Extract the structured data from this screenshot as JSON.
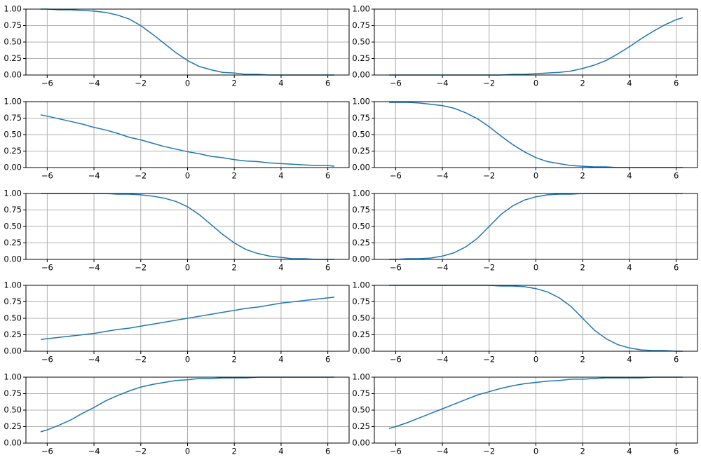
{
  "chart_data": [
    {
      "type": "line",
      "color": "#1f77b4",
      "grid": true,
      "xlim": [
        -6.91,
        6.91
      ],
      "ylim": [
        0,
        1
      ],
      "xticks": [
        {
          "value": -6,
          "label": "−6"
        },
        {
          "value": -4,
          "label": "−4"
        },
        {
          "value": -2,
          "label": "−2"
        },
        0,
        2,
        4,
        6
      ],
      "yticks": [
        {
          "value": 0,
          "label": "0.00"
        },
        {
          "value": 0.25,
          "label": "0.25"
        },
        {
          "value": 0.5,
          "label": "0.50"
        },
        {
          "value": 0.75,
          "label": "0.75"
        },
        {
          "value": 1,
          "label": "1.00"
        }
      ],
      "x": [
        -6.28,
        -6,
        -5.5,
        -5,
        -4.5,
        -4,
        -3.5,
        -3,
        -2.5,
        -2,
        -1.5,
        -1,
        -0.5,
        0,
        0.5,
        1,
        1.5,
        2,
        2.5,
        3,
        3.5,
        4,
        4.5,
        5,
        5.5,
        6,
        6.28
      ],
      "values": [
        1.0,
        1.0,
        0.99,
        0.99,
        0.98,
        0.97,
        0.95,
        0.91,
        0.85,
        0.75,
        0.62,
        0.48,
        0.34,
        0.22,
        0.13,
        0.08,
        0.04,
        0.03,
        0.01,
        0.01,
        0,
        0,
        0,
        0,
        0,
        0,
        0
      ]
    },
    {
      "type": "line",
      "color": "#1f77b4",
      "grid": true,
      "xlim": [
        -6.91,
        6.91
      ],
      "ylim": [
        0,
        1
      ],
      "xticks": [
        {
          "value": -6,
          "label": "−6"
        },
        {
          "value": -4,
          "label": "−4"
        },
        {
          "value": -2,
          "label": "−2"
        },
        0,
        2,
        4,
        6
      ],
      "yticks": [
        {
          "value": 0,
          "label": "0.00"
        },
        {
          "value": 0.25,
          "label": "0.25"
        },
        {
          "value": 0.5,
          "label": "0.50"
        },
        {
          "value": 0.75,
          "label": "0.75"
        },
        {
          "value": 1,
          "label": "1.00"
        }
      ],
      "x": [
        -6.28,
        -6,
        -5.5,
        -5,
        -4.5,
        -4,
        -3.5,
        -3,
        -2.5,
        -2,
        -1.5,
        -1,
        -0.5,
        0,
        0.5,
        1,
        1.5,
        2,
        2.5,
        3,
        3.5,
        4,
        4.5,
        5,
        5.5,
        6,
        6.28
      ],
      "values": [
        0,
        0,
        0,
        0,
        0,
        0,
        0,
        0,
        0,
        0,
        0,
        0.01,
        0.01,
        0.02,
        0.03,
        0.04,
        0.06,
        0.1,
        0.15,
        0.22,
        0.32,
        0.43,
        0.55,
        0.66,
        0.76,
        0.84,
        0.87
      ]
    },
    {
      "type": "line",
      "color": "#1f77b4",
      "grid": true,
      "xlim": [
        -6.91,
        6.91
      ],
      "ylim": [
        0,
        1
      ],
      "xticks": [
        {
          "value": -6,
          "label": "−6"
        },
        {
          "value": -4,
          "label": "−4"
        },
        {
          "value": -2,
          "label": "−2"
        },
        0,
        2,
        4,
        6
      ],
      "yticks": [
        {
          "value": 0,
          "label": "0.00"
        },
        {
          "value": 0.25,
          "label": "0.25"
        },
        {
          "value": 0.5,
          "label": "0.50"
        },
        {
          "value": 0.75,
          "label": "0.75"
        },
        {
          "value": 1,
          "label": "1.00"
        }
      ],
      "x": [
        -6.28,
        -6,
        -5.5,
        -5,
        -4.5,
        -4,
        -3.5,
        -3,
        -2.5,
        -2,
        -1.5,
        -1,
        -0.5,
        0,
        0.5,
        1,
        1.5,
        2,
        2.5,
        3,
        3.5,
        4,
        4.5,
        5,
        5.5,
        6,
        6.28
      ],
      "values": [
        0.8,
        0.78,
        0.74,
        0.7,
        0.66,
        0.61,
        0.57,
        0.52,
        0.46,
        0.42,
        0.37,
        0.32,
        0.28,
        0.24,
        0.21,
        0.17,
        0.15,
        0.12,
        0.1,
        0.09,
        0.07,
        0.06,
        0.05,
        0.04,
        0.03,
        0.03,
        0.02
      ]
    },
    {
      "type": "line",
      "color": "#1f77b4",
      "grid": true,
      "xlim": [
        -6.91,
        6.91
      ],
      "ylim": [
        0,
        1
      ],
      "xticks": [
        {
          "value": -6,
          "label": "−6"
        },
        {
          "value": -4,
          "label": "−4"
        },
        {
          "value": -2,
          "label": "−2"
        },
        0,
        2,
        4,
        6
      ],
      "yticks": [
        {
          "value": 0,
          "label": "0.00"
        },
        {
          "value": 0.25,
          "label": "0.25"
        },
        {
          "value": 0.5,
          "label": "0.50"
        },
        {
          "value": 0.75,
          "label": "0.75"
        },
        {
          "value": 1,
          "label": "1.00"
        }
      ],
      "x": [
        -6.28,
        -6,
        -5.5,
        -5,
        -4.5,
        -4,
        -3.5,
        -3,
        -2.5,
        -2,
        -1.5,
        -1,
        -0.5,
        0,
        0.5,
        1,
        1.5,
        2,
        2.5,
        3,
        3.5,
        4,
        4.5,
        5,
        5.5,
        6,
        6.28
      ],
      "values": [
        0.99,
        0.99,
        0.99,
        0.98,
        0.96,
        0.94,
        0.9,
        0.83,
        0.74,
        0.62,
        0.48,
        0.35,
        0.24,
        0.15,
        0.09,
        0.06,
        0.03,
        0.02,
        0.01,
        0.01,
        0,
        0,
        0,
        0,
        0,
        0,
        0
      ]
    },
    {
      "type": "line",
      "color": "#1f77b4",
      "grid": true,
      "xlim": [
        -6.91,
        6.91
      ],
      "ylim": [
        0,
        1
      ],
      "xticks": [
        {
          "value": -6,
          "label": "−6"
        },
        {
          "value": -4,
          "label": "−4"
        },
        {
          "value": -2,
          "label": "−2"
        },
        0,
        2,
        4,
        6
      ],
      "yticks": [
        {
          "value": 0,
          "label": "0.00"
        },
        {
          "value": 0.25,
          "label": "0.25"
        },
        {
          "value": 0.5,
          "label": "0.50"
        },
        {
          "value": 0.75,
          "label": "0.75"
        },
        {
          "value": 1,
          "label": "1.00"
        }
      ],
      "x": [
        -6.28,
        -6,
        -5.5,
        -5,
        -4.5,
        -4,
        -3.5,
        -3,
        -2.5,
        -2,
        -1.5,
        -1,
        -0.5,
        0,
        0.5,
        1,
        1.5,
        2,
        2.5,
        3,
        3.5,
        4,
        4.5,
        5,
        5.5,
        6,
        6.28
      ],
      "values": [
        1.0,
        1.0,
        1.0,
        1.0,
        1.0,
        1.0,
        1.0,
        0.99,
        0.99,
        0.98,
        0.96,
        0.93,
        0.88,
        0.8,
        0.68,
        0.53,
        0.38,
        0.25,
        0.15,
        0.09,
        0.05,
        0.03,
        0.01,
        0.01,
        0,
        0,
        0
      ]
    },
    {
      "type": "line",
      "color": "#1f77b4",
      "grid": true,
      "xlim": [
        -6.91,
        6.91
      ],
      "ylim": [
        0,
        1
      ],
      "xticks": [
        {
          "value": -6,
          "label": "−6"
        },
        {
          "value": -4,
          "label": "−4"
        },
        {
          "value": -2,
          "label": "−2"
        },
        0,
        2,
        4,
        6
      ],
      "yticks": [
        {
          "value": 0,
          "label": "0.00"
        },
        {
          "value": 0.25,
          "label": "0.25"
        },
        {
          "value": 0.5,
          "label": "0.50"
        },
        {
          "value": 0.75,
          "label": "0.75"
        },
        {
          "value": 1,
          "label": "1.00"
        }
      ],
      "x": [
        -6.28,
        -6,
        -5.5,
        -5,
        -4.5,
        -4,
        -3.5,
        -3,
        -2.5,
        -2,
        -1.5,
        -1,
        -0.5,
        0,
        0.5,
        1,
        1.5,
        2,
        2.5,
        3,
        3.5,
        4,
        4.5,
        5,
        5.5,
        6,
        6.28
      ],
      "values": [
        0,
        0,
        0.01,
        0.01,
        0.02,
        0.05,
        0.1,
        0.19,
        0.32,
        0.5,
        0.68,
        0.81,
        0.9,
        0.95,
        0.98,
        0.99,
        0.99,
        1.0,
        1.0,
        1.0,
        1.0,
        1.0,
        1.0,
        1.0,
        1.0,
        1.0,
        1.0
      ]
    },
    {
      "type": "line",
      "color": "#1f77b4",
      "grid": true,
      "xlim": [
        -6.91,
        6.91
      ],
      "ylim": [
        0,
        1
      ],
      "xticks": [
        {
          "value": -6,
          "label": "−6"
        },
        {
          "value": -4,
          "label": "−4"
        },
        {
          "value": -2,
          "label": "−2"
        },
        0,
        2,
        4,
        6
      ],
      "yticks": [
        {
          "value": 0,
          "label": "0.00"
        },
        {
          "value": 0.25,
          "label": "0.25"
        },
        {
          "value": 0.5,
          "label": "0.50"
        },
        {
          "value": 0.75,
          "label": "0.75"
        },
        {
          "value": 1,
          "label": "1.00"
        }
      ],
      "x": [
        -6.28,
        -6,
        -5.5,
        -5,
        -4.5,
        -4,
        -3.5,
        -3,
        -2.5,
        -2,
        -1.5,
        -1,
        -0.5,
        0,
        0.5,
        1,
        1.5,
        2,
        2.5,
        3,
        3.5,
        4,
        4.5,
        5,
        5.5,
        6,
        6.28
      ],
      "values": [
        0.18,
        0.19,
        0.21,
        0.23,
        0.25,
        0.27,
        0.3,
        0.33,
        0.35,
        0.38,
        0.41,
        0.44,
        0.47,
        0.5,
        0.53,
        0.56,
        0.59,
        0.62,
        0.65,
        0.67,
        0.7,
        0.73,
        0.75,
        0.77,
        0.79,
        0.81,
        0.82
      ]
    },
    {
      "type": "line",
      "color": "#1f77b4",
      "grid": true,
      "xlim": [
        -6.91,
        6.91
      ],
      "ylim": [
        0,
        1
      ],
      "xticks": [
        {
          "value": -6,
          "label": "−6"
        },
        {
          "value": -4,
          "label": "−4"
        },
        {
          "value": -2,
          "label": "−2"
        },
        0,
        2,
        4,
        6
      ],
      "yticks": [
        {
          "value": 0,
          "label": "0.00"
        },
        {
          "value": 0.25,
          "label": "0.25"
        },
        {
          "value": 0.5,
          "label": "0.50"
        },
        {
          "value": 0.75,
          "label": "0.75"
        },
        {
          "value": 1,
          "label": "1.00"
        }
      ],
      "x": [
        -6.28,
        -6,
        -5.5,
        -5,
        -4.5,
        -4,
        -3.5,
        -3,
        -2.5,
        -2,
        -1.5,
        -1,
        -0.5,
        0,
        0.5,
        1,
        1.5,
        2,
        2.5,
        3,
        3.5,
        4,
        4.5,
        5,
        5.5,
        6,
        6.28
      ],
      "values": [
        1.0,
        1.0,
        1.0,
        1.0,
        1.0,
        1.0,
        1.0,
        1.0,
        1.0,
        1.0,
        0.99,
        0.99,
        0.98,
        0.95,
        0.9,
        0.81,
        0.68,
        0.5,
        0.32,
        0.19,
        0.1,
        0.05,
        0.02,
        0.01,
        0.01,
        0,
        0
      ]
    },
    {
      "type": "line",
      "color": "#1f77b4",
      "grid": true,
      "xlim": [
        -6.91,
        6.91
      ],
      "ylim": [
        0,
        1
      ],
      "xticks": [
        {
          "value": -6,
          "label": "−6"
        },
        {
          "value": -4,
          "label": "−4"
        },
        {
          "value": -2,
          "label": "−2"
        },
        0,
        2,
        4,
        6
      ],
      "yticks": [
        {
          "value": 0,
          "label": "0.00"
        },
        {
          "value": 0.25,
          "label": "0.25"
        },
        {
          "value": 0.5,
          "label": "0.50"
        },
        {
          "value": 0.75,
          "label": "0.75"
        },
        {
          "value": 1,
          "label": "1.00"
        }
      ],
      "x": [
        -6.28,
        -6,
        -5.5,
        -5,
        -4.5,
        -4,
        -3.5,
        -3,
        -2.5,
        -2,
        -1.5,
        -1,
        -0.5,
        0,
        0.5,
        1,
        1.5,
        2,
        2.5,
        3,
        3.5,
        4,
        4.5,
        5,
        5.5,
        6,
        6.28
      ],
      "values": [
        0.17,
        0.2,
        0.27,
        0.35,
        0.45,
        0.54,
        0.64,
        0.72,
        0.79,
        0.85,
        0.89,
        0.92,
        0.95,
        0.96,
        0.98,
        0.98,
        0.99,
        0.99,
        0.99,
        1.0,
        1.0,
        1.0,
        1.0,
        1.0,
        1.0,
        1.0,
        1.0
      ]
    },
    {
      "type": "line",
      "color": "#1f77b4",
      "grid": true,
      "xlim": [
        -6.91,
        6.91
      ],
      "ylim": [
        0,
        1
      ],
      "xticks": [
        {
          "value": -6,
          "label": "−6"
        },
        {
          "value": -4,
          "label": "−4"
        },
        {
          "value": -2,
          "label": "−2"
        },
        0,
        2,
        4,
        6
      ],
      "yticks": [
        {
          "value": 0,
          "label": "0.00"
        },
        {
          "value": 0.25,
          "label": "0.25"
        },
        {
          "value": 0.5,
          "label": "0.50"
        },
        {
          "value": 0.75,
          "label": "0.75"
        },
        {
          "value": 1,
          "label": "1.00"
        }
      ],
      "x": [
        -6.28,
        -6,
        -5.5,
        -5,
        -4.5,
        -4,
        -3.5,
        -3,
        -2.5,
        -2,
        -1.5,
        -1,
        -0.5,
        0,
        0.5,
        1,
        1.5,
        2,
        2.5,
        3,
        3.5,
        4,
        4.5,
        5,
        5.5,
        6,
        6.28
      ],
      "values": [
        0.22,
        0.25,
        0.31,
        0.38,
        0.45,
        0.52,
        0.59,
        0.66,
        0.73,
        0.78,
        0.83,
        0.87,
        0.9,
        0.92,
        0.94,
        0.95,
        0.97,
        0.97,
        0.98,
        0.99,
        0.99,
        0.99,
        0.99,
        1.0,
        1.0,
        1.0,
        1.0
      ]
    }
  ]
}
